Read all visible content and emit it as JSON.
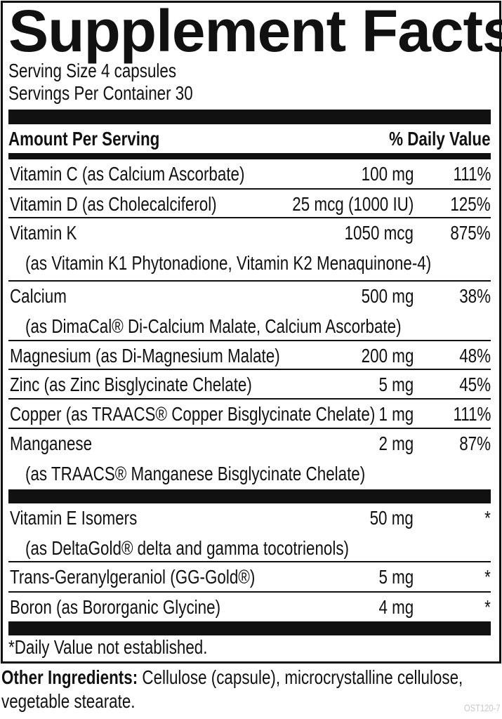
{
  "title": "Supplement Facts",
  "serving_size": "Serving Size 4 capsules",
  "servings_per_container": "Servings Per Container 30",
  "header": {
    "amount": "Amount Per Serving",
    "dv": "% Daily Value"
  },
  "group1": [
    {
      "name": "Vitamin C (as Calcium Ascorbate)",
      "amount": "100 mg",
      "dv": "111%"
    },
    {
      "name": "Vitamin D (as Cholecalciferol)",
      "amount": "25 mcg (1000 IU)",
      "dv": "125%"
    },
    {
      "name": "Vitamin K",
      "sub": "(as Vitamin K1 Phytonadione, Vitamin K2 Menaquinone-4)",
      "amount": "1050 mcg",
      "dv": "875%"
    },
    {
      "name": "Calcium",
      "sub": "(as DimaCal® Di-Calcium Malate, Calcium Ascorbate)",
      "amount": "500 mg",
      "dv": "38%"
    },
    {
      "name": "Magnesium (as Di-Magnesium Malate)",
      "amount": "200 mg",
      "dv": "48%"
    },
    {
      "name": "Zinc (as Zinc Bisglycinate Chelate)",
      "amount": "5 mg",
      "dv": "45%"
    },
    {
      "name": "Copper (as TRAACS® Copper Bisglycinate Chelate)",
      "amount": "1 mg",
      "dv": "111%"
    },
    {
      "name": "Manganese",
      "sub": "(as TRAACS® Manganese Bisglycinate Chelate)",
      "amount": "2 mg",
      "dv": "87%"
    }
  ],
  "group2": [
    {
      "name": "Vitamin E Isomers",
      "sub": "(as DeltaGold® delta and gamma tocotrienols)",
      "amount": "50 mg",
      "dv": "*"
    },
    {
      "name": "Trans-Geranylgeraniol (GG-Gold®)",
      "amount": "5 mg",
      "dv": "*"
    },
    {
      "name": "Boron (as Bororganic Glycine)",
      "amount": "4 mg",
      "dv": "*"
    }
  ],
  "footnote": "*Daily Value not established.",
  "other_ingredients": {
    "label": "Other Ingredients:",
    "text": " Cellulose (capsule), microcrystalline cellulose,",
    "text2": "vegetable stearate."
  },
  "code": "OST120-7"
}
